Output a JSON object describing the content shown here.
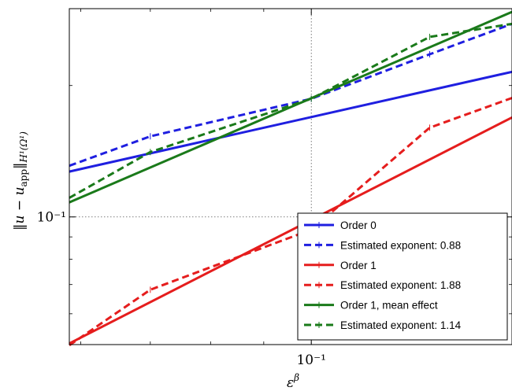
{
  "chart_data": {
    "type": "line",
    "xscale": "log",
    "yscale": "log",
    "xlim": [
      0.0585,
      0.156
    ],
    "ylim": [
      0.051,
      0.3
    ],
    "xlabel": "ε^β",
    "ylabel": "‖u − u_app‖_{H¹(Ω¹)}",
    "x_ticks": [
      {
        "value": 0.1,
        "label": "10⁻¹"
      }
    ],
    "y_ticks": [
      {
        "value": 0.1,
        "label": "10⁻¹"
      }
    ],
    "grid": "dotted, at major ticks",
    "legend_position": "bottom-right",
    "series": [
      {
        "name": "Order 0",
        "color": "#1f1fe0",
        "style": "solid",
        "x": [
          0.0585,
          0.156
        ],
        "y": [
          0.127,
          0.215
        ]
      },
      {
        "name": "Estimated exponent: 0.88",
        "color": "#1f1fe0",
        "style": "dashed",
        "x": [
          0.0585,
          0.07,
          0.1,
          0.13,
          0.156
        ],
        "y": [
          0.131,
          0.153,
          0.1865,
          0.2358,
          0.2769
        ]
      },
      {
        "name": "Order 1",
        "color": "#e51d1d",
        "style": "solid",
        "x": [
          0.0585,
          0.156
        ],
        "y": [
          0.0513,
          0.169
        ]
      },
      {
        "name": "Estimated exponent: 1.88",
        "color": "#e51d1d",
        "style": "dashed",
        "x": [
          0.0585,
          0.07,
          0.1,
          0.13,
          0.156
        ],
        "y": [
          0.0508,
          0.0681,
          0.0935,
          0.1601,
          0.1873
        ]
      },
      {
        "name": "Order 1, mean effect",
        "color": "#1a7a1a",
        "style": "solid",
        "x": [
          0.0585,
          0.156
        ],
        "y": [
          0.108,
          0.295
        ]
      },
      {
        "name": "Estimated exponent: 1.14",
        "color": "#1a7a1a",
        "style": "dashed",
        "x": [
          0.0585,
          0.07,
          0.1,
          0.13,
          0.156
        ],
        "y": [
          0.1106,
          0.1408,
          0.1865,
          0.2585,
          0.2769
        ]
      }
    ]
  }
}
